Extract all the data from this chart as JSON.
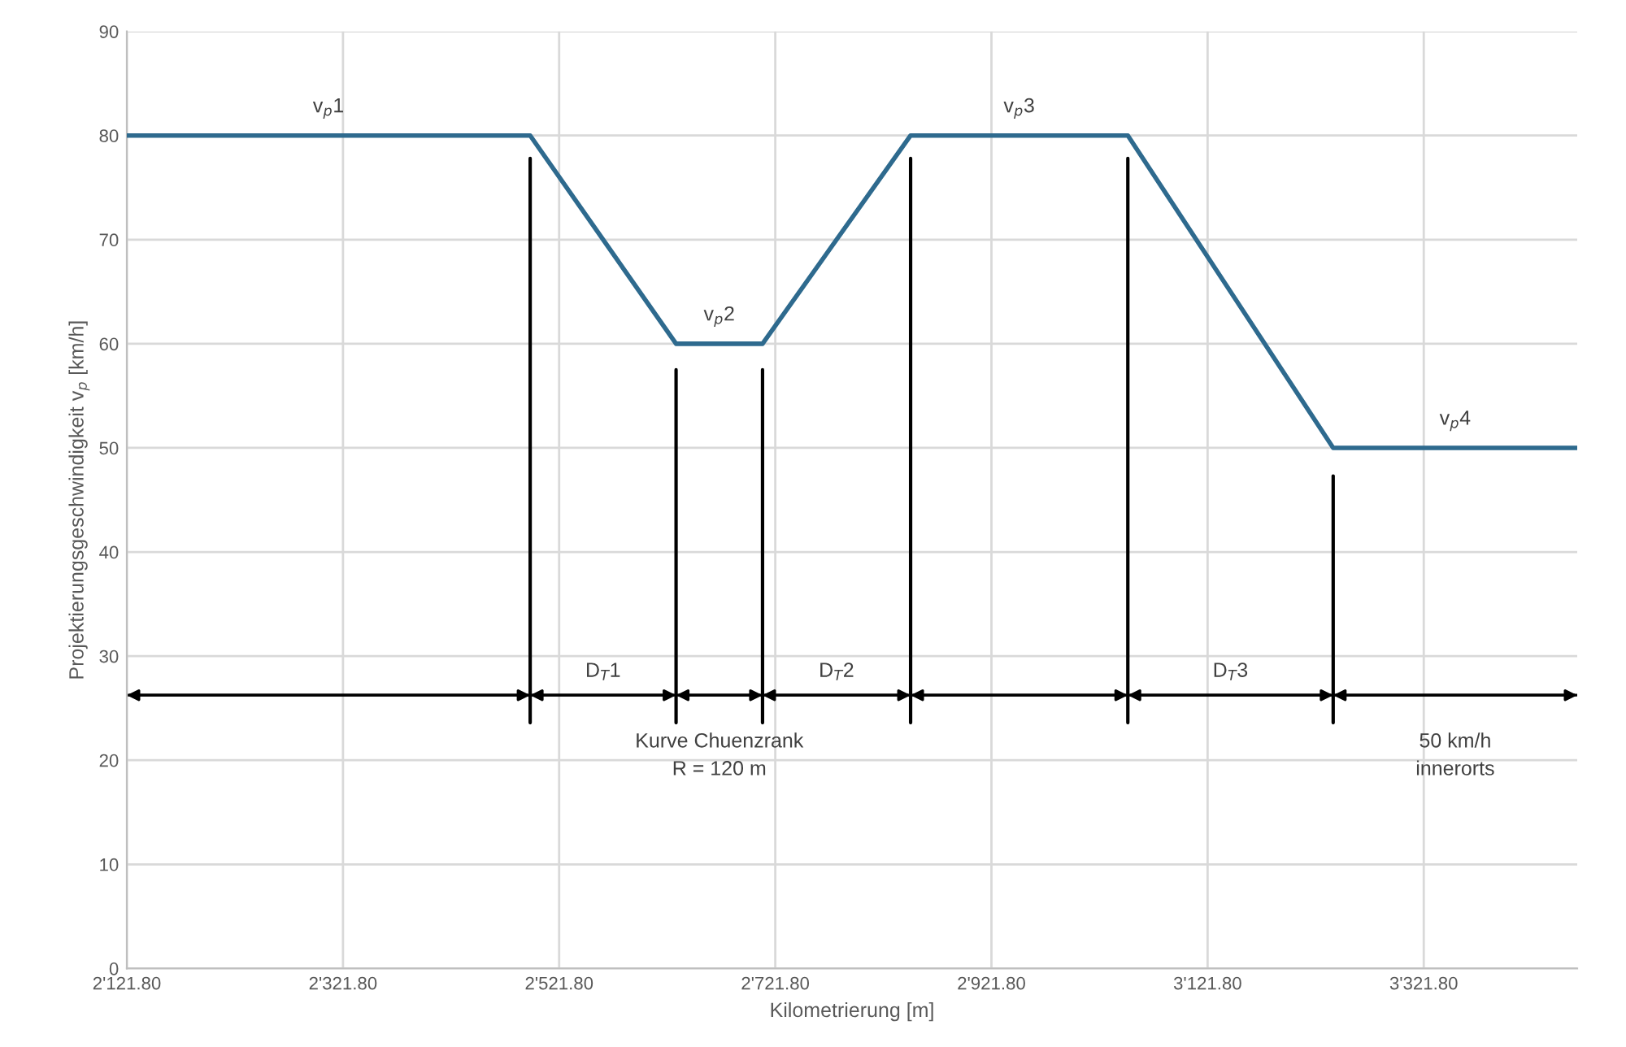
{
  "chart_data": {
    "type": "line",
    "xlabel": "Kilometrierung [m]",
    "ylabel": "Projektierungsgeschwindigkeit v$_{p}$ [km/h]",
    "xlim": [
      2121.8,
      3463.8
    ],
    "xticks": [
      {
        "value": 2121.8,
        "label": "2'121.80"
      },
      {
        "value": 2321.8,
        "label": "2'321.80"
      },
      {
        "value": 2521.8,
        "label": "2'521.80"
      },
      {
        "value": 2721.8,
        "label": "2'721.80"
      },
      {
        "value": 2921.8,
        "label": "2'921.80"
      },
      {
        "value": 3121.8,
        "label": "3'121.80"
      },
      {
        "value": 3321.8,
        "label": "3'321.80"
      }
    ],
    "ylim": [
      0,
      90
    ],
    "yticks": [
      0,
      10,
      20,
      30,
      40,
      50,
      60,
      70,
      80,
      90
    ],
    "grid": true,
    "marker": "none",
    "line_style": "solid",
    "series": [
      {
        "color": "#2e6a8e",
        "x": [
          2121.8,
          2495,
          2630,
          2710,
          2847,
          3048,
          3238,
          3463.8
        ],
        "values": [
          80,
          80,
          60,
          60,
          80,
          80,
          50,
          50
        ]
      },
      {
        "color": "#000000",
        "x": [
          2495,
          2495
        ],
        "values": [
          23.6,
          77.8
        ]
      },
      {
        "color": "#000000",
        "x": [
          2630,
          2630
        ],
        "values": [
          23.6,
          57.5
        ]
      },
      {
        "color": "#000000",
        "x": [
          2710,
          2710
        ],
        "values": [
          23.6,
          57.5
        ]
      },
      {
        "color": "#000000",
        "x": [
          2847,
          2847
        ],
        "values": [
          23.6,
          77.8
        ]
      },
      {
        "color": "#000000",
        "x": [
          3048,
          3048
        ],
        "values": [
          23.6,
          77.8
        ]
      },
      {
        "color": "#000000",
        "x": [
          3238,
          3238
        ],
        "values": [
          23.6,
          47.3
        ]
      }
    ],
    "ref_lines": [
      {
        "axis": "y",
        "value": 26.25,
        "color": "#000000"
      }
    ],
    "annotations": [
      "v$_{p}$1",
      "v$_{p}$2",
      "v$_{p}$3",
      "v$_{p}$4",
      "D$_{T}$1",
      "D$_{T}$2",
      "D$_{T}$3",
      "Kurve Chuenzrank\nR = 120 m",
      "50 km/h\ninnerorts"
    ]
  }
}
